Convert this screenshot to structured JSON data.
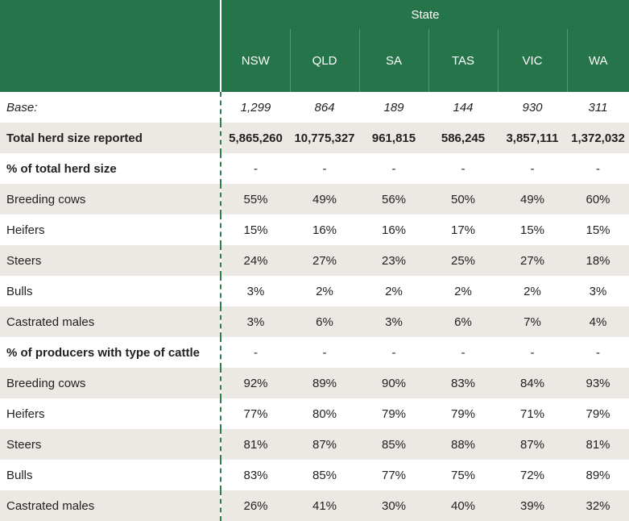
{
  "header": {
    "group_title": "State",
    "states": [
      "NSW",
      "QLD",
      "SA",
      "TAS",
      "VIC",
      "WA"
    ]
  },
  "rows": [
    {
      "label": "Base:",
      "values": [
        "1,299",
        "864",
        "189",
        "144",
        "930",
        "311"
      ],
      "style": "italic"
    },
    {
      "label": "Total herd size reported",
      "values": [
        "5,865,260",
        "10,775,327",
        "961,815",
        "586,245",
        "3,857,111",
        "1,372,032"
      ],
      "style": "bold"
    },
    {
      "label": "% of total herd size",
      "values": [
        "-",
        "-",
        "-",
        "-",
        "-",
        "-"
      ],
      "style": "section"
    },
    {
      "label": "Breeding cows",
      "values": [
        "55%",
        "49%",
        "56%",
        "50%",
        "49%",
        "60%"
      ],
      "style": "normal"
    },
    {
      "label": "Heifers",
      "values": [
        "15%",
        "16%",
        "16%",
        "17%",
        "15%",
        "15%"
      ],
      "style": "normal"
    },
    {
      "label": "Steers",
      "values": [
        "24%",
        "27%",
        "23%",
        "25%",
        "27%",
        "18%"
      ],
      "style": "normal"
    },
    {
      "label": "Bulls",
      "values": [
        "3%",
        "2%",
        "2%",
        "2%",
        "2%",
        "3%"
      ],
      "style": "normal"
    },
    {
      "label": "Castrated males",
      "values": [
        "3%",
        "6%",
        "3%",
        "6%",
        "7%",
        "4%"
      ],
      "style": "normal"
    },
    {
      "label": "% of producers with type of cattle",
      "values": [
        "-",
        "-",
        "-",
        "-",
        "-",
        "-"
      ],
      "style": "section"
    },
    {
      "label": "Breeding cows",
      "values": [
        "92%",
        "89%",
        "90%",
        "83%",
        "84%",
        "93%"
      ],
      "style": "normal"
    },
    {
      "label": "Heifers",
      "values": [
        "77%",
        "80%",
        "79%",
        "79%",
        "71%",
        "79%"
      ],
      "style": "normal"
    },
    {
      "label": "Steers",
      "values": [
        "81%",
        "87%",
        "85%",
        "88%",
        "87%",
        "81%"
      ],
      "style": "normal"
    },
    {
      "label": "Bulls",
      "values": [
        "83%",
        "85%",
        "77%",
        "75%",
        "72%",
        "89%"
      ],
      "style": "normal"
    },
    {
      "label": "Castrated males",
      "values": [
        "26%",
        "41%",
        "30%",
        "40%",
        "39%",
        "32%"
      ],
      "style": "normal"
    }
  ],
  "colors": {
    "header_bg": "#25744a",
    "header_text": "#ffffff",
    "shade_row": "#ece8e4",
    "divider": "#2d7d4f"
  }
}
